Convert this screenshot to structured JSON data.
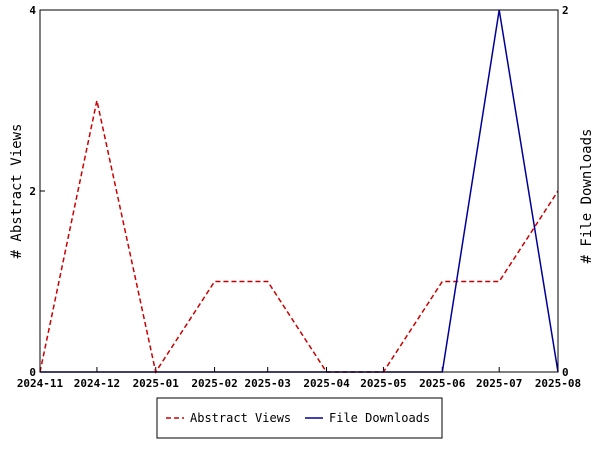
{
  "chart_data": {
    "type": "line",
    "xlabel": "",
    "ylabel_left": "# Abstract Views",
    "ylabel_right": "# File Downloads",
    "x": [
      "2024-11",
      "2024-12",
      "2025-01",
      "2025-02",
      "2025-03",
      "2025-04",
      "2025-05",
      "2025-06",
      "2025-07",
      "2025-08"
    ],
    "x_dates": [
      "2024-11-01",
      "2024-12-01",
      "2025-01-01",
      "2025-02-01",
      "2025-03-01",
      "2025-04-01",
      "2025-05-01",
      "2025-06-01",
      "2025-07-01",
      "2025-08-01"
    ],
    "ylim_left": [
      0,
      4
    ],
    "ylim_right": [
      0,
      2
    ],
    "yticks_left": [
      "0",
      "2",
      "4"
    ],
    "yticks_right": [
      "0",
      "2"
    ],
    "grid": false,
    "legend_position": "bottom",
    "series": [
      {
        "name": "Abstract Views",
        "axis": "left",
        "color": "#cc0000",
        "style": "dashed",
        "values": [
          0,
          3,
          0,
          1,
          1,
          0,
          0,
          1,
          1,
          2
        ]
      },
      {
        "name": "File Downloads",
        "axis": "right",
        "color": "#000099",
        "style": "solid",
        "values": [
          0,
          0,
          0,
          0,
          0,
          0,
          0,
          0,
          2,
          0
        ]
      }
    ]
  }
}
